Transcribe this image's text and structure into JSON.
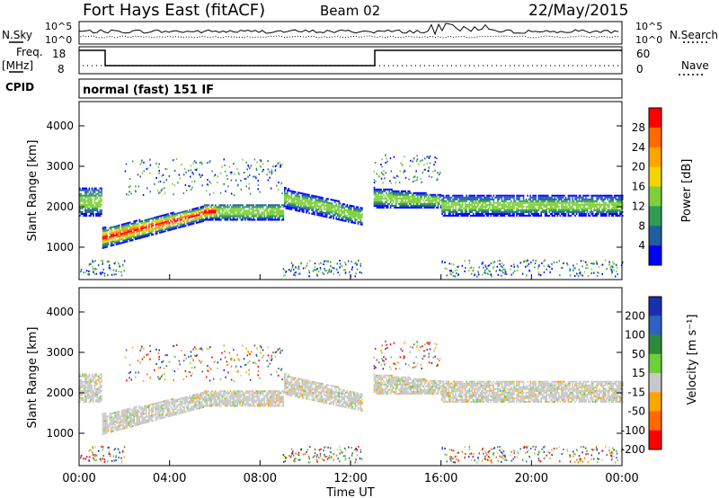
{
  "header": {
    "site": "Fort Hays East (fitACF)",
    "beam": "Beam 02",
    "date": "22/May/2015"
  },
  "noise_panel": {
    "left_label": "N.Sky",
    "right_label": "N.Search",
    "left_ticks": [
      "10^5",
      "10^0"
    ],
    "right_ticks": [
      "10^5",
      "10^0"
    ]
  },
  "freq_panel": {
    "left_label_1": "Freq.",
    "left_label_2": "[MHz]",
    "right_label": "Nave",
    "left_ticks": [
      "18",
      "8"
    ],
    "right_ticks": [
      "60",
      "0"
    ]
  },
  "cpid": {
    "label": "CPID",
    "text": "normal (fast) 151 IF"
  },
  "chart_data": [
    {
      "type": "heatmap",
      "panel": "power",
      "ylabel": "Slant Range [km]",
      "ylim": [
        200,
        4600
      ],
      "yticks": [
        "4000",
        "3000",
        "2000",
        "1000"
      ],
      "colorbar": {
        "label": "Power [dB]",
        "ticks": [
          "28",
          "24",
          "20",
          "16",
          "12",
          "8",
          "4"
        ],
        "colors": [
          "#ff0000",
          "#ff6a00",
          "#ffa500",
          "#f2d400",
          "#7ecf3a",
          "#2f9b55",
          "#1f5f9f",
          "#0000ff"
        ]
      }
    },
    {
      "type": "heatmap",
      "panel": "velocity",
      "xlabel": "Time UT",
      "ylabel": "Slant Range [km]",
      "ylim": [
        200,
        4600
      ],
      "xlim": [
        "00:00",
        "24:00"
      ],
      "xticks": [
        "00:00",
        "04:00",
        "08:00",
        "12:00",
        "16:00",
        "20:00",
        "00:00"
      ],
      "yticks": [
        "4000",
        "3000",
        "2000",
        "1000"
      ],
      "colorbar": {
        "label": "Velocity [m s⁻¹]",
        "ticks": [
          "200",
          "100",
          "50",
          "15",
          "-15",
          "-50",
          "-100",
          "-200"
        ],
        "colors": [
          "#1a2fb0",
          "#3060c0",
          "#2c8a3a",
          "#6fcf3a",
          "#c8c8c8",
          "#ffa500",
          "#ff6a00",
          "#ff0000"
        ]
      }
    }
  ]
}
